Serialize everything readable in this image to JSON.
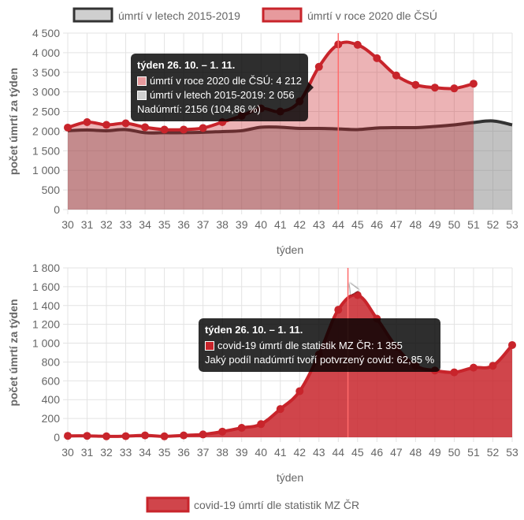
{
  "colors": {
    "red": "#c8242b",
    "red_fill": "rgba(200,36,43,0.35)",
    "grey_line": "#333333",
    "grey_fill": "rgba(120,120,120,0.45)",
    "grid": "#e3e3e3",
    "axis_text": "#666666",
    "tooltip_bg": "#000000",
    "vline": "#ff6b6b"
  },
  "top_legend": {
    "items": [
      {
        "label": "úmrtí v letech 2015-2019"
      },
      {
        "label": "úmrtí v roce 2020 dle ČSÚ"
      }
    ]
  },
  "tooltip1": {
    "title": "týden 26. 10. – 1. 11.",
    "line1": "úmrtí v roce 2020 dle ČSÚ: 4 212",
    "line2": "úmrtí v letech 2015-2019: 2 056",
    "line3": "Nadúmrtí: 2156 (104,86 %)"
  },
  "tooltip2": {
    "title": "týden 26. 10. – 1. 11.",
    "line1": "covid-19 úmrtí dle statistik MZ ČR: 1 355",
    "line2": "Jaký podíl nadúmrtí tvoří potvrzený covid: 62,85 %"
  },
  "bottom_legend": {
    "items": [
      {
        "label": "covid-19 úmrtí dle statistik MZ ČR"
      }
    ]
  },
  "chart_data": [
    {
      "type": "area",
      "xlabel": "týden",
      "ylabel": "počet úmrtí za týden",
      "x": [
        30,
        31,
        32,
        33,
        34,
        35,
        36,
        37,
        38,
        39,
        40,
        41,
        42,
        43,
        44,
        45,
        46,
        47,
        48,
        49,
        50,
        51,
        52,
        53
      ],
      "ylim": [
        0,
        4500
      ],
      "yticks": [
        0,
        500,
        1000,
        1500,
        2000,
        2500,
        3000,
        3500,
        4000,
        4500
      ],
      "ytick_labels": [
        "0",
        "500",
        "1 000",
        "1 500",
        "2 000",
        "2 500",
        "3 000",
        "3 500",
        "4 000",
        "4 500"
      ],
      "grid": true,
      "legend": "top",
      "series": [
        {
          "name": "úmrtí v letech 2015-2019",
          "x": [
            30,
            31,
            32,
            33,
            34,
            35,
            36,
            37,
            38,
            39,
            40,
            41,
            42,
            43,
            44,
            45,
            46,
            47,
            48,
            49,
            50,
            51,
            52,
            53
          ],
          "values": [
            2010,
            2030,
            2010,
            2040,
            1960,
            1960,
            1960,
            1970,
            1990,
            2010,
            2100,
            2100,
            2070,
            2070,
            2056,
            2040,
            2080,
            2090,
            2090,
            2120,
            2160,
            2220,
            2260,
            2160
          ]
        },
        {
          "name": "úmrtí v roce 2020 dle ČSÚ",
          "x": [
            30,
            31,
            32,
            33,
            34,
            35,
            36,
            37,
            38,
            39,
            40,
            41,
            42,
            43,
            44,
            45,
            46,
            47,
            48,
            49,
            50,
            51
          ],
          "values": [
            2090,
            2230,
            2160,
            2200,
            2100,
            2040,
            2040,
            2080,
            2230,
            2390,
            2580,
            2500,
            2760,
            3640,
            4212,
            4200,
            3860,
            3420,
            3180,
            3110,
            3090,
            3210
          ]
        }
      ],
      "highlight_x": 44
    },
    {
      "type": "area",
      "xlabel": "týden",
      "ylabel": "počet úmrtí za týden",
      "x": [
        30,
        31,
        32,
        33,
        34,
        35,
        36,
        37,
        38,
        39,
        40,
        41,
        42,
        43,
        44,
        45,
        46,
        47,
        48,
        49,
        50,
        51,
        52,
        53
      ],
      "ylim": [
        0,
        1800
      ],
      "yticks": [
        0,
        200,
        400,
        600,
        800,
        1000,
        1200,
        1400,
        1600,
        1800
      ],
      "ytick_labels": [
        "0",
        "200",
        "400",
        "600",
        "800",
        "1 000",
        "1 200",
        "1 400",
        "1 600",
        "1 800"
      ],
      "grid": true,
      "legend": "bottom",
      "series": [
        {
          "name": "covid-19 úmrtí dle statistik MZ ČR",
          "x": [
            30,
            31,
            32,
            33,
            34,
            35,
            36,
            37,
            38,
            39,
            40,
            41,
            42,
            43,
            44,
            45,
            46,
            47,
            48,
            49,
            50,
            51,
            52,
            53
          ],
          "values": [
            15,
            15,
            10,
            12,
            20,
            10,
            20,
            30,
            60,
            100,
            140,
            300,
            490,
            880,
            1355,
            1510,
            1260,
            960,
            760,
            710,
            690,
            740,
            760,
            980
          ]
        }
      ],
      "highlight_x": 44.5
    }
  ]
}
